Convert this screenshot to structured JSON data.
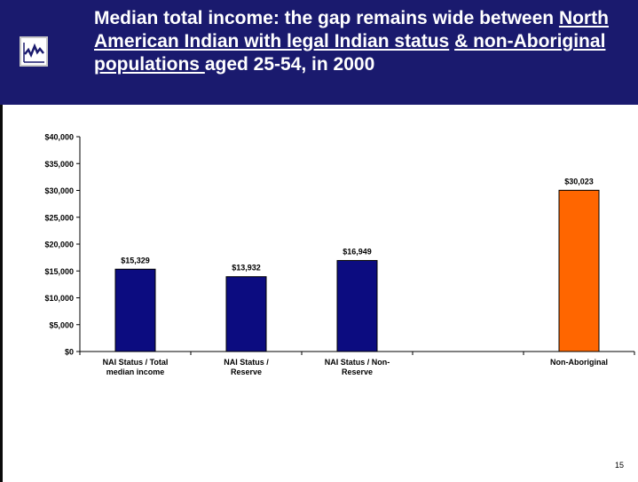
{
  "slide": {
    "title_part1": "Median total income: the gap remains wide between ",
    "title_part2": "North American Indian with legal Indian status",
    "title_part3": " ",
    "title_part4": "& non-Aboriginal populations ",
    "title_part5": "aged 25-54, in 2000",
    "page_number": "15",
    "logo_icon": "line-chart-icon"
  },
  "chart_data": {
    "type": "bar",
    "categories": [
      [
        "NAI Status /  Total",
        "median income"
      ],
      [
        "NAI Status /",
        "Reserve"
      ],
      [
        "NAI Status / Non-",
        "Reserve"
      ],
      [
        ""
      ],
      [
        "Non-Aboriginal"
      ]
    ],
    "values": [
      15329,
      13932,
      16949,
      null,
      30023
    ],
    "data_labels": [
      "$15,329",
      "$13,932",
      "$16,949",
      "",
      "$30,023"
    ],
    "bar_colors": [
      "#0c0c80",
      "#0c0c80",
      "#0c0c80",
      "#0c0c80",
      "#ff6600"
    ],
    "ylim": [
      0,
      40000
    ],
    "yticks": [
      0,
      5000,
      10000,
      15000,
      20000,
      25000,
      30000,
      35000,
      40000
    ],
    "ytick_labels": [
      "$0",
      "$5,000",
      "$10,000",
      "$15,000",
      "$20,000",
      "$25,000",
      "$30,000",
      "$35,000",
      "$40,000"
    ],
    "title": "",
    "xlabel": "",
    "ylabel": "",
    "grid": false,
    "legend": false
  }
}
